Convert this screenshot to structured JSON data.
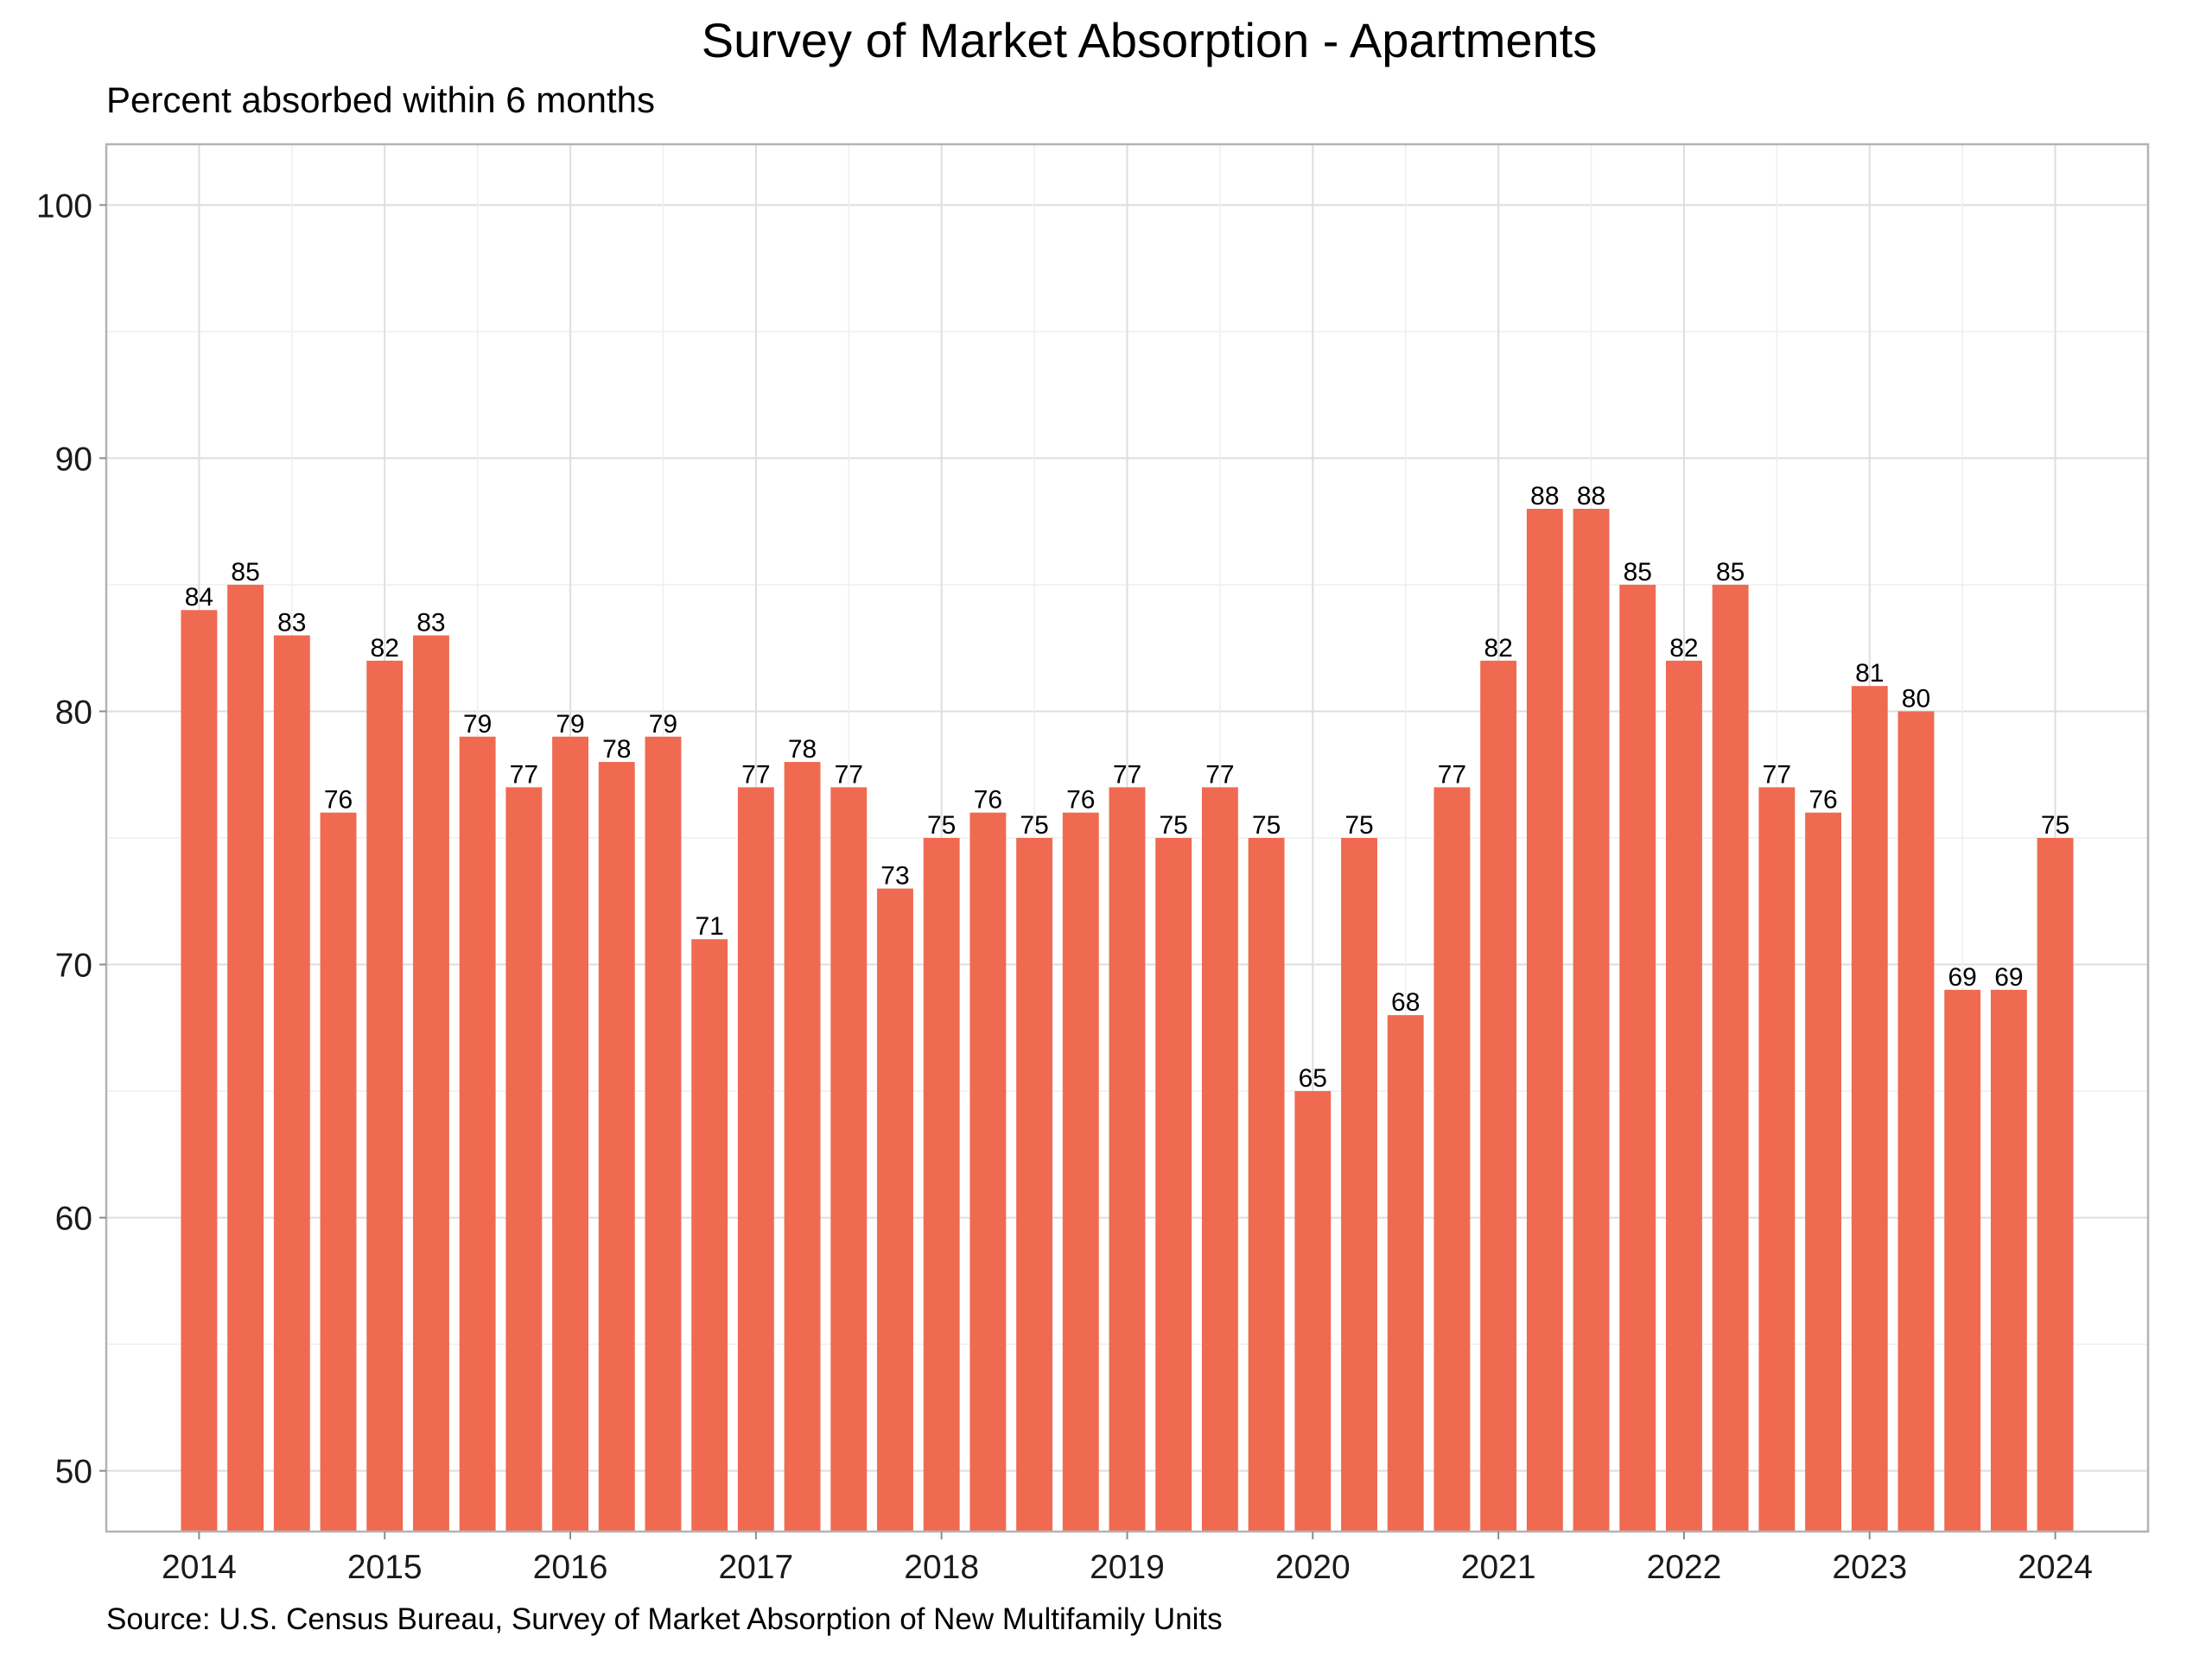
{
  "title": "Survey of Market Absorption - Apartments",
  "subtitle": "Percent absorbed within 6 months",
  "caption": "Source: U.S. Census Bureau, Survey of Market Absorption of New Multifamily Units",
  "colors": {
    "bar": "#ef6a51",
    "background": "#ffffff"
  },
  "chart_data": {
    "type": "bar",
    "title": "Survey of Market Absorption - Apartments",
    "subtitle": "Percent absorbed within 6 months",
    "xlabel": "",
    "ylabel": "",
    "ylim": [
      47.6,
      102.4
    ],
    "y_ticks": [
      50,
      60,
      70,
      80,
      90,
      100
    ],
    "x_ticks": [
      "2014",
      "2015",
      "2016",
      "2017",
      "2018",
      "2019",
      "2020",
      "2021",
      "2022",
      "2023",
      "2024"
    ],
    "grid": true,
    "categories": [
      "2014 Q1",
      "2014 Q2",
      "2014 Q3",
      "2014 Q4",
      "2015 Q1",
      "2015 Q2",
      "2015 Q3",
      "2015 Q4",
      "2016 Q1",
      "2016 Q2",
      "2016 Q3",
      "2016 Q4",
      "2017 Q1",
      "2017 Q2",
      "2017 Q3",
      "2017 Q4",
      "2018 Q1",
      "2018 Q2",
      "2018 Q3",
      "2018 Q4",
      "2019 Q1",
      "2019 Q2",
      "2019 Q3",
      "2019 Q4",
      "2020 Q1",
      "2020 Q2",
      "2020 Q3",
      "2020 Q4",
      "2021 Q1",
      "2021 Q2",
      "2021 Q3",
      "2021 Q4",
      "2022 Q1",
      "2022 Q2",
      "2022 Q3",
      "2022 Q4",
      "2023 Q1",
      "2023 Q2",
      "2023 Q3",
      "2023 Q4",
      "2024 Q1"
    ],
    "values": [
      84,
      85,
      83,
      76,
      82,
      83,
      79,
      77,
      79,
      78,
      79,
      71,
      77,
      78,
      77,
      73,
      75,
      76,
      75,
      76,
      77,
      75,
      77,
      75,
      65,
      75,
      68,
      77,
      82,
      88,
      88,
      85,
      82,
      85,
      77,
      76,
      81,
      80,
      69,
      69,
      75
    ]
  }
}
